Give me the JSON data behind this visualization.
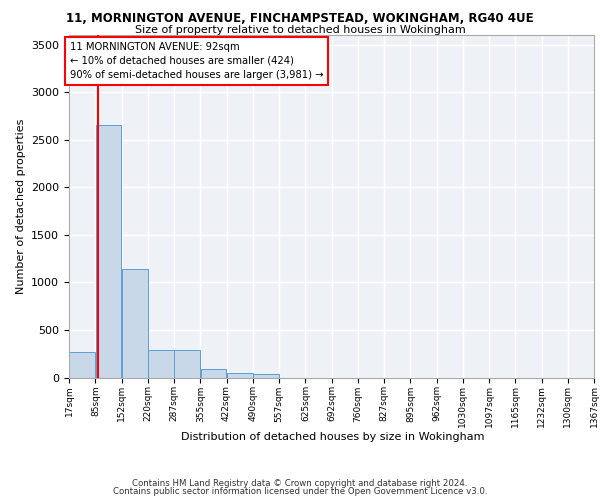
{
  "title1": "11, MORNINGTON AVENUE, FINCHAMPSTEAD, WOKINGHAM, RG40 4UE",
  "title2": "Size of property relative to detached houses in Wokingham",
  "xlabel": "Distribution of detached houses by size in Wokingham",
  "ylabel": "Number of detached properties",
  "footer1": "Contains HM Land Registry data © Crown copyright and database right 2024.",
  "footer2": "Contains public sector information licensed under the Open Government Licence v3.0.",
  "annotation_line1": "11 MORNINGTON AVENUE: 92sqm",
  "annotation_line2": "← 10% of detached houses are smaller (424)",
  "annotation_line3": "90% of semi-detached houses are larger (3,981) →",
  "bar_color": "#c8d8e8",
  "bar_edge_color": "#5a9fd4",
  "red_line_x": 92,
  "ylim": [
    0,
    3600
  ],
  "yticks": [
    0,
    500,
    1000,
    1500,
    2000,
    2500,
    3000,
    3500
  ],
  "bins": [
    17,
    85,
    152,
    220,
    287,
    355,
    422,
    490,
    557,
    625,
    692,
    760,
    827,
    895,
    962,
    1030,
    1097,
    1165,
    1232,
    1300,
    1367
  ],
  "bin_labels": [
    "17sqm",
    "85sqm",
    "152sqm",
    "220sqm",
    "287sqm",
    "355sqm",
    "422sqm",
    "490sqm",
    "557sqm",
    "625sqm",
    "692sqm",
    "760sqm",
    "827sqm",
    "895sqm",
    "962sqm",
    "1030sqm",
    "1097sqm",
    "1165sqm",
    "1232sqm",
    "1300sqm",
    "1367sqm"
  ],
  "bar_heights": [
    270,
    2650,
    1140,
    285,
    285,
    85,
    50,
    35,
    0,
    0,
    0,
    0,
    0,
    0,
    0,
    0,
    0,
    0,
    0,
    0
  ],
  "bg_color": "#eef2f7",
  "grid_color": "#ffffff"
}
